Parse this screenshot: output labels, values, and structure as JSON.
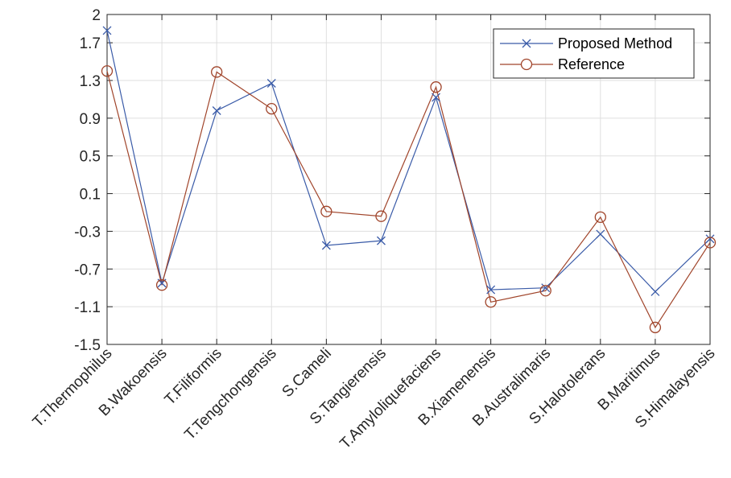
{
  "chart_data": {
    "type": "line",
    "title": "",
    "xlabel": "",
    "ylabel": "",
    "categories": [
      "T.Thermophilus",
      "B.Wakoensis",
      "T.Filiformis",
      "T.Tengchongensis",
      "S.Cameli",
      "S.Tangierensis",
      "T.Amyloliquefaciens",
      "B.Xiamenensis",
      "B.Australimaris",
      "S.Halotolerans",
      "B.Maritimus",
      "S.Himalayensis"
    ],
    "ylim": [
      -1.5,
      2
    ],
    "yticks": [
      "2",
      "1.7",
      "1.3",
      "0.9",
      "0.5",
      "0.1",
      "-0.3",
      "-0.7",
      "-1.1",
      "-1.5"
    ],
    "ytick_values": [
      2,
      1.7,
      1.3,
      0.9,
      0.5,
      0.1,
      -0.3,
      -0.7,
      -1.1,
      -1.5
    ],
    "grid": true,
    "legend_position": "top-right",
    "series": [
      {
        "name": "Proposed Method",
        "marker": "x",
        "color": "#3a5ba8",
        "values": [
          1.83,
          -0.85,
          0.98,
          1.27,
          -0.45,
          -0.4,
          1.12,
          -0.92,
          -0.9,
          -0.33,
          -0.94,
          -0.38
        ]
      },
      {
        "name": "Reference",
        "marker": "o",
        "color": "#a0442a",
        "values": [
          1.4,
          -0.87,
          1.39,
          1.0,
          -0.09,
          -0.14,
          1.23,
          -1.05,
          -0.93,
          -0.15,
          -1.32,
          -0.42
        ]
      }
    ]
  }
}
